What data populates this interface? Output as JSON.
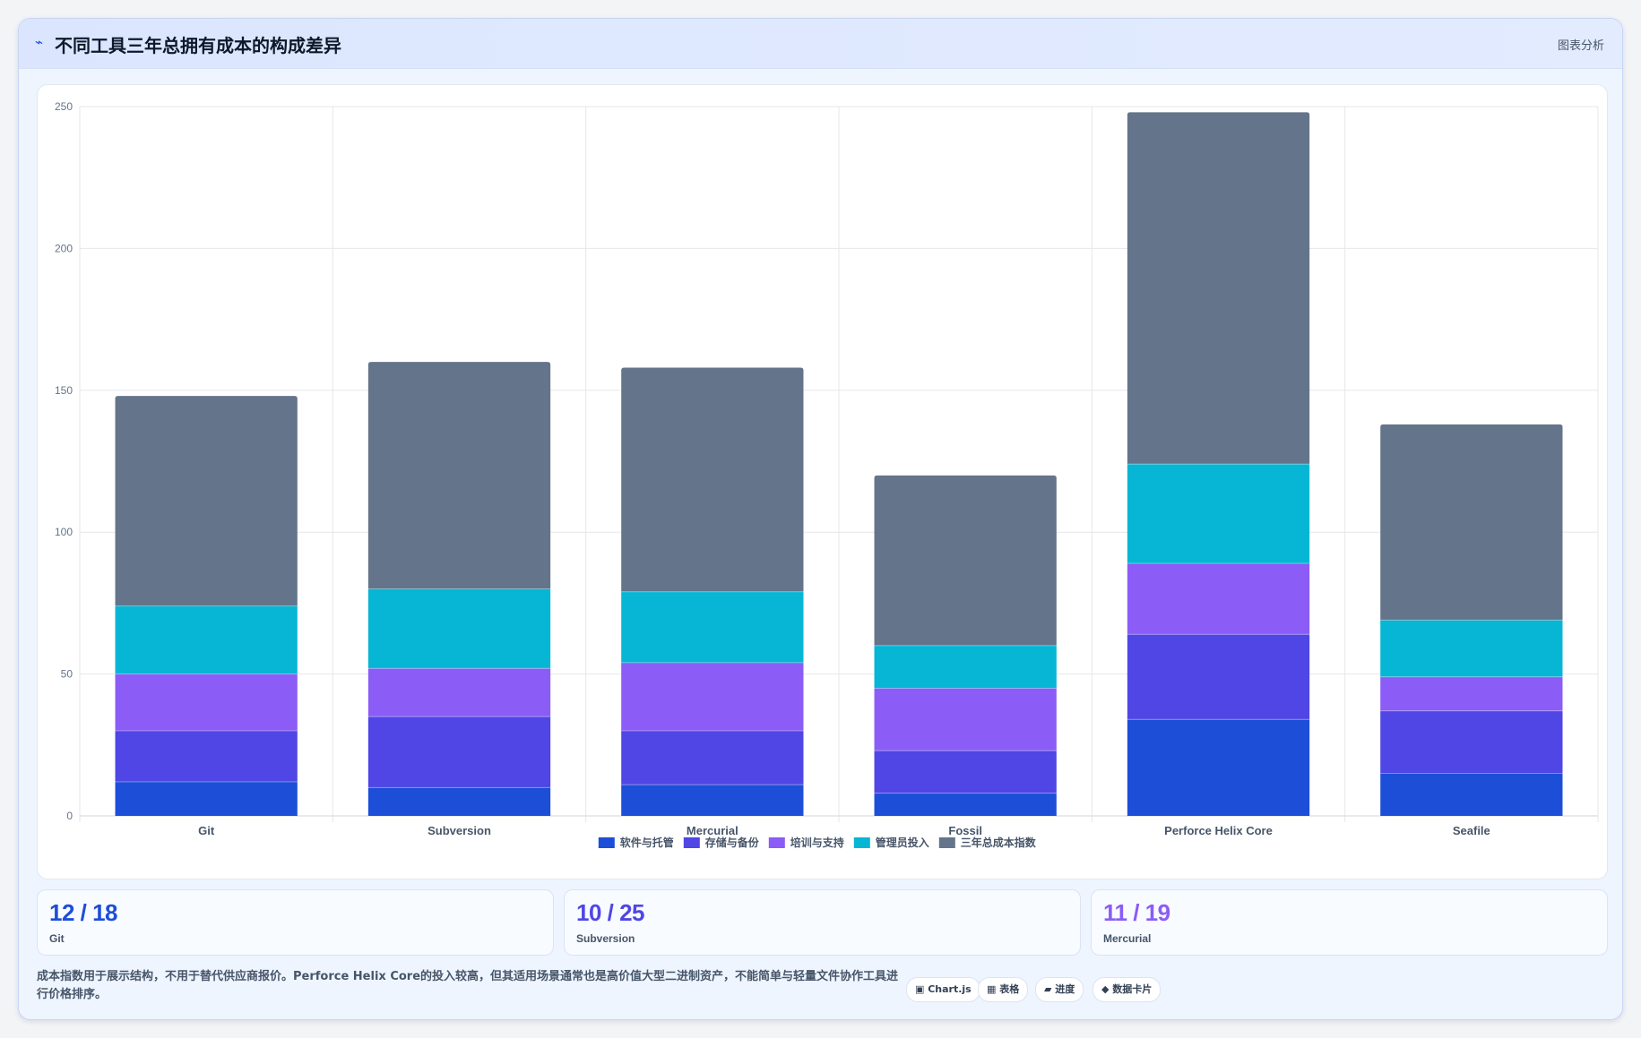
{
  "header": {
    "icon": "chart-line-icon",
    "icon_glyph": "⌁",
    "title": "不同工具三年总拥有成本的构成差异",
    "action": "图表分析"
  },
  "chart_data": {
    "type": "bar",
    "stacked": true,
    "title": "",
    "xlabel": "",
    "ylabel": "",
    "categories": [
      "Git",
      "Subversion",
      "Mercurial",
      "Fossil",
      "Perforce Helix Core",
      "Seafile"
    ],
    "ylim": [
      0,
      250
    ],
    "yticks": [
      0,
      50,
      100,
      150,
      200,
      250
    ],
    "grid": true,
    "legend_position": "bottom",
    "series": [
      {
        "name": "软件与托管",
        "color": "#1d4ed8",
        "values": [
          12,
          10,
          11,
          8,
          34,
          15
        ]
      },
      {
        "name": "存储与备份",
        "color": "#4f46e5",
        "values": [
          18,
          25,
          19,
          15,
          30,
          22
        ]
      },
      {
        "name": "培训与支持",
        "color": "#8b5cf6",
        "values": [
          20,
          17,
          24,
          22,
          25,
          12
        ]
      },
      {
        "name": "管理员投入",
        "color": "#06b6d4",
        "values": [
          24,
          28,
          25,
          15,
          35,
          20
        ]
      },
      {
        "name": "三年总成本指数",
        "color": "#64748b",
        "values": [
          74,
          80,
          79,
          60,
          124,
          69
        ]
      }
    ]
  },
  "kpis": [
    {
      "value": "12 / 18",
      "label": "Git",
      "color": "#1d4ed8"
    },
    {
      "value": "10 / 25",
      "label": "Subversion",
      "color": "#4f46e5"
    },
    {
      "value": "11 / 19",
      "label": "Mercurial",
      "color": "#8b5cf6"
    }
  ],
  "footnote": "成本指数用于展示结构，不用于替代供应商报价。Perforce Helix Core的投入较高，但其适用场景通常也是高价值大型二进制资产，不能简单与轻量文件协作工具进行价格排序。",
  "chips": [
    {
      "label": "▣ Chart.js",
      "icon": "chart-icon"
    },
    {
      "label": "▦ 表格",
      "icon": "table-icon"
    },
    {
      "label": "▰ 进度",
      "icon": "progress-icon"
    },
    {
      "label": "◆ 数据卡片",
      "icon": "data-card-icon"
    }
  ]
}
